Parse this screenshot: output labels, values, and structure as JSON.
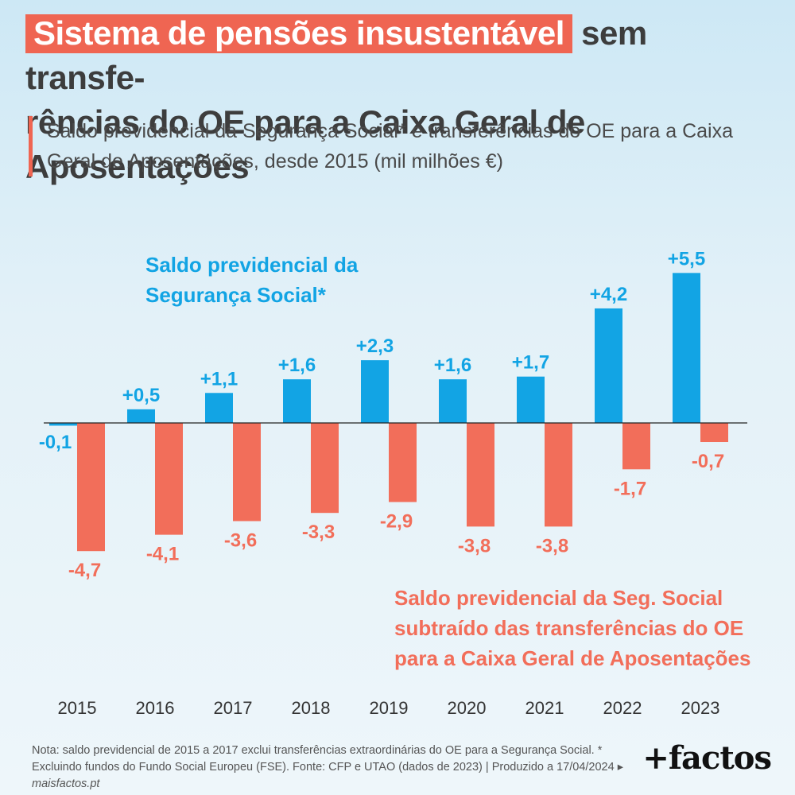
{
  "title": {
    "highlight": "Sistema de pensões insustentável",
    "rest_line1": " sem transfe-",
    "rest_line2": "rências do OE para a Caixa Geral de Aposentações"
  },
  "subtitle": "Saldo previdencial da Segurança Social* e transferências do OE para a Caixa Geral de Aposentações, desde 2015 (mil milhões €)",
  "footnote": {
    "text": "Nota: saldo previdencial de 2015 a 2017 exclui transferências extraordinárias do OE para a Segurança Social. * Excluindo fundos do Fundo Social Europeu (FSE). Fonte: CFP e UTAO (dados de 2023) | Produzido a 17/04/2024 ▸ ",
    "site": "maisfactos.pt"
  },
  "logo": "+factos",
  "colors": {
    "blue": "#12a4e4",
    "red": "#f26e5a",
    "title_highlight": "#ef6552"
  },
  "chart_data": {
    "type": "bar",
    "categories": [
      "2015",
      "2016",
      "2017",
      "2018",
      "2019",
      "2020",
      "2021",
      "2022",
      "2023"
    ],
    "series": [
      {
        "name": "Saldo previdencial da Segurança Social*",
        "label_lines": [
          "Saldo previdencial da",
          "Segurança Social*"
        ],
        "values": [
          -0.1,
          0.5,
          1.1,
          1.6,
          2.3,
          1.6,
          1.7,
          4.2,
          5.5
        ],
        "labels": [
          "-0,1",
          "+0,5",
          "+1,1",
          "+1,6",
          "+2,3",
          "+1,6",
          "+1,7",
          "+4,2",
          "+5,5"
        ],
        "color": "#12a4e4"
      },
      {
        "name": "Saldo previdencial da Seg. Social subtraído das transferências do OE para a Caixa Geral de Aposentações",
        "label_lines": [
          "Saldo previdencial da Seg. Social",
          "subtraído das transferências do OE",
          "para a Caixa Geral de Aposentações"
        ],
        "values": [
          -4.7,
          -4.1,
          -3.6,
          -3.3,
          -2.9,
          -3.8,
          -3.8,
          -1.7,
          -0.7
        ],
        "labels": [
          "-4,7",
          "-4,1",
          "-3,6",
          "-3,3",
          "-2,9",
          "-3,8",
          "-3,8",
          "-1,7",
          "-0,7"
        ],
        "color": "#f26e5a"
      }
    ],
    "ylim": [
      -4.7,
      5.5
    ],
    "grid": false
  }
}
